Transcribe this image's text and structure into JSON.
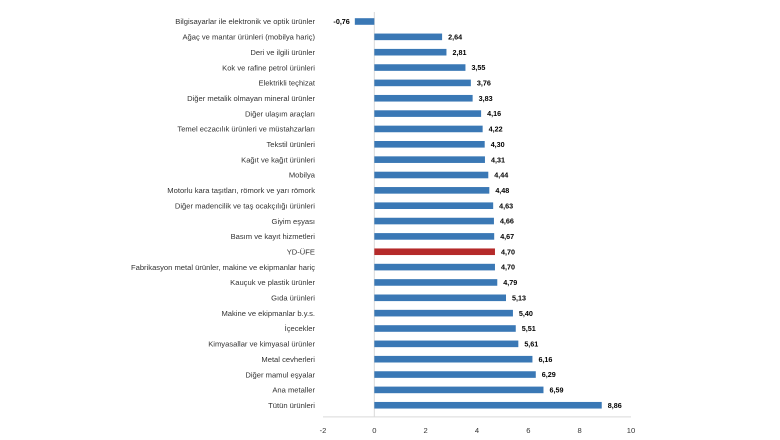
{
  "chart_data": {
    "type": "bar",
    "orientation": "horizontal",
    "title": "",
    "xlabel": "",
    "ylabel": "",
    "xlim": [
      -2,
      10
    ],
    "x_ticks": [
      "-2",
      "0",
      "2",
      "4",
      "6",
      "8",
      "10"
    ],
    "grid": false,
    "legend": "none",
    "colors": {
      "default": "#3a78b5",
      "highlight": "#b52a2a",
      "axis": "#d9d9d9"
    },
    "highlight_category": "YD-ÜFE",
    "categories": [
      "Bilgisayarlar ile elektronik ve optik ürünler",
      "Ağaç ve mantar ürünleri (mobilya hariç)",
      "Deri ve ilgili ürünler",
      "Kok ve rafine petrol ürünleri",
      "Elektrikli teçhizat",
      "Diğer metalik olmayan mineral ürünler",
      "Diğer ulaşım araçları",
      "Temel eczacılık ürünleri ve müstahzarları",
      "Tekstil ürünleri",
      "Kağıt ve kağıt ürünleri",
      "Mobilya",
      "Motorlu kara taşıtları, römork ve yarı römork",
      "Diğer madencilik ve taş ocakçılığı ürünleri",
      "Giyim eşyası",
      "Basım ve kayıt hizmetleri",
      "YD-ÜFE",
      "Fabrikasyon metal ürünler, makine ve ekipmanlar hariç",
      "Kauçuk ve plastik ürünler",
      "Gıda ürünleri",
      "Makine ve ekipmanlar b.y.s.",
      "İçecekler",
      "Kimyasallar ve kimyasal ürünler",
      "Metal cevherleri",
      "Diğer mamul eşyalar",
      "Ana metaller",
      "Tütün ürünleri"
    ],
    "values": [
      -0.76,
      2.64,
      2.81,
      3.55,
      3.76,
      3.83,
      4.16,
      4.22,
      4.3,
      4.31,
      4.44,
      4.48,
      4.63,
      4.66,
      4.67,
      4.7,
      4.7,
      4.79,
      5.13,
      5.4,
      5.51,
      5.61,
      6.16,
      6.29,
      6.59,
      8.86
    ],
    "value_labels": [
      "-0,76",
      "2,64",
      "2,81",
      "3,55",
      "3,76",
      "3,83",
      "4,16",
      "4,22",
      "4,30",
      "4,31",
      "4,44",
      "4,48",
      "4,63",
      "4,66",
      "4,67",
      "4,70",
      "4,70",
      "4,79",
      "5,13",
      "5,40",
      "5,51",
      "5,61",
      "6,16",
      "6,29",
      "6,59",
      "8,86"
    ]
  }
}
